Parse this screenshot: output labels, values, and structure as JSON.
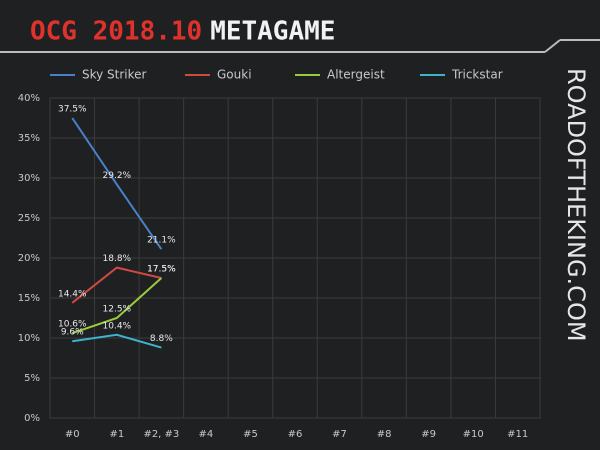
{
  "chart_data": {
    "type": "line",
    "title_prefix": "OCG 2018.10",
    "title": "METAGAME",
    "watermark": "ROADOFTHEKING.COM",
    "categories": [
      "#0",
      "#1",
      "#2, #3",
      "#4",
      "#5",
      "#6",
      "#7",
      "#8",
      "#9",
      "#10",
      "#11"
    ],
    "series": [
      {
        "name": "Sky Striker",
        "color": "#4a80c8",
        "values": [
          37.5,
          29.2,
          21.1,
          null,
          null,
          null,
          null,
          null,
          null,
          null,
          null
        ],
        "value_labels": [
          "37.5%",
          "29.2%",
          "21.1%",
          null,
          null,
          null,
          null,
          null,
          null,
          null,
          null
        ]
      },
      {
        "name": "Gouki",
        "color": "#d04a42",
        "values": [
          14.4,
          18.8,
          17.5,
          null,
          null,
          null,
          null,
          null,
          null,
          null,
          null
        ],
        "value_labels": [
          "14.4%",
          "18.8%",
          "17.5%",
          null,
          null,
          null,
          null,
          null,
          null,
          null,
          null
        ]
      },
      {
        "name": "Altergeist",
        "color": "#9acb3c",
        "values": [
          10.6,
          12.5,
          17.5,
          null,
          null,
          null,
          null,
          null,
          null,
          null,
          null
        ],
        "value_labels": [
          "10.6%",
          "12.5%",
          "17.5%",
          null,
          null,
          null,
          null,
          null,
          null,
          null,
          null
        ]
      },
      {
        "name": "Trickstar",
        "color": "#3fb2cc",
        "values": [
          9.6,
          10.4,
          8.8,
          null,
          null,
          null,
          null,
          null,
          null,
          null,
          null
        ],
        "value_labels": [
          "9.6%",
          "10.4%",
          "8.8%",
          null,
          null,
          null,
          null,
          null,
          null,
          null,
          null
        ]
      }
    ],
    "ylim": [
      0,
      40
    ],
    "yticks": [
      {
        "value": 0,
        "label": "0%"
      },
      {
        "value": 5,
        "label": "5%"
      },
      {
        "value": 10,
        "label": "10%"
      },
      {
        "value": 15,
        "label": "15%"
      },
      {
        "value": 20,
        "label": "20%"
      },
      {
        "value": 25,
        "label": "25%"
      },
      {
        "value": 30,
        "label": "30%"
      },
      {
        "value": 35,
        "label": "35%"
      },
      {
        "value": 40,
        "label": "40%"
      }
    ],
    "grid": true,
    "legend": "top"
  }
}
